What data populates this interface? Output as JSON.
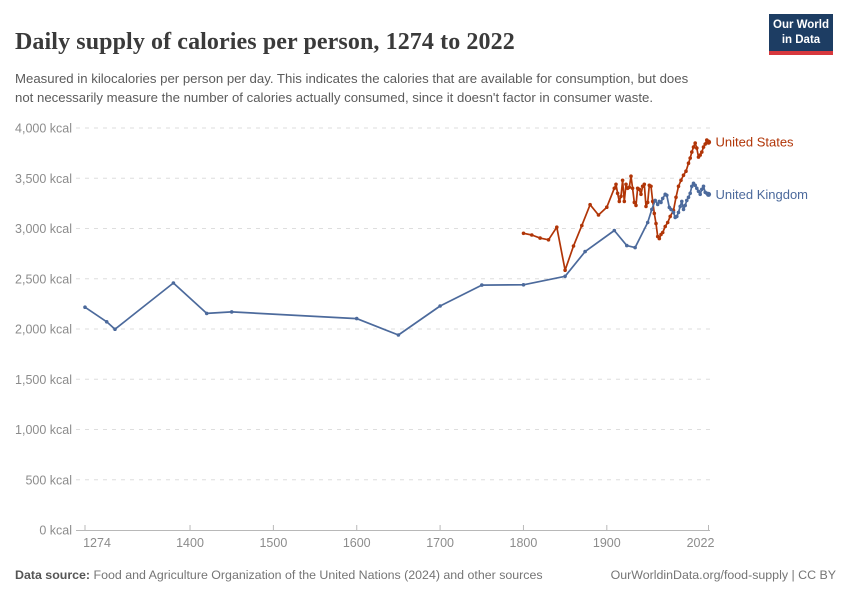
{
  "header": {
    "title": "Daily supply of calories per person, 1274 to 2022",
    "subtitle": "Measured in kilocalories per person per day. This indicates the calories that are available for consumption, but does not necessarily measure the number of calories actually consumed, since it doesn't factor in consumer waste.",
    "logo": {
      "line1": "Our World",
      "line2": "in Data",
      "background": "#1d3d63",
      "accent": "#d7383d"
    }
  },
  "chart_data": {
    "type": "line",
    "title": "Daily supply of calories per person, 1274 to 2022",
    "xlabel": "",
    "ylabel": "",
    "unit": "kcal",
    "grid": "horizontal-dashed",
    "legend_position": "line-end-labels",
    "x_axis": {
      "range": [
        1274,
        2022
      ],
      "ticks": [
        1274,
        1400,
        1500,
        1600,
        1700,
        1800,
        1900,
        2022
      ]
    },
    "y_axis": {
      "range": [
        0,
        4000
      ],
      "ticks": [
        {
          "value": 0,
          "label": "0 kcal"
        },
        {
          "value": 500,
          "label": "500 kcal"
        },
        {
          "value": 1000,
          "label": "1,000 kcal"
        },
        {
          "value": 1500,
          "label": "1,500 kcal"
        },
        {
          "value": 2000,
          "label": "2,000 kcal"
        },
        {
          "value": 2500,
          "label": "2,500 kcal"
        },
        {
          "value": 3000,
          "label": "3,000 kcal"
        },
        {
          "value": 3500,
          "label": "3,500 kcal"
        },
        {
          "value": 4000,
          "label": "4,000 kcal"
        }
      ]
    },
    "series": [
      {
        "name": "United States",
        "color": "#B13507",
        "points": [
          [
            1800,
            2952
          ],
          [
            1810,
            2935
          ],
          [
            1820,
            2904
          ],
          [
            1830,
            2888
          ],
          [
            1840,
            3013
          ],
          [
            1850,
            2585
          ],
          [
            1860,
            2826
          ],
          [
            1870,
            3029
          ],
          [
            1880,
            3237
          ],
          [
            1890,
            3134
          ],
          [
            1900,
            3212
          ],
          [
            1909,
            3400
          ],
          [
            1911,
            3440
          ],
          [
            1913,
            3350
          ],
          [
            1915,
            3270
          ],
          [
            1917,
            3320
          ],
          [
            1919,
            3480
          ],
          [
            1921,
            3270
          ],
          [
            1923,
            3440
          ],
          [
            1925,
            3400
          ],
          [
            1927,
            3410
          ],
          [
            1929,
            3520
          ],
          [
            1931,
            3400
          ],
          [
            1933,
            3260
          ],
          [
            1935,
            3230
          ],
          [
            1937,
            3400
          ],
          [
            1939,
            3390
          ],
          [
            1941,
            3340
          ],
          [
            1943,
            3420
          ],
          [
            1945,
            3440
          ],
          [
            1947,
            3220
          ],
          [
            1949,
            3260
          ],
          [
            1951,
            3430
          ],
          [
            1953,
            3420
          ],
          [
            1955,
            3270
          ],
          [
            1957,
            3150
          ],
          [
            1959,
            3050
          ],
          [
            1961,
            2920
          ],
          [
            1963,
            2900
          ],
          [
            1965,
            2940
          ],
          [
            1967,
            2960
          ],
          [
            1970,
            3020
          ],
          [
            1973,
            3060
          ],
          [
            1976,
            3120
          ],
          [
            1980,
            3180
          ],
          [
            1983,
            3310
          ],
          [
            1986,
            3420
          ],
          [
            1989,
            3480
          ],
          [
            1992,
            3530
          ],
          [
            1995,
            3570
          ],
          [
            1998,
            3650
          ],
          [
            2000,
            3700
          ],
          [
            2002,
            3760
          ],
          [
            2004,
            3810
          ],
          [
            2006,
            3850
          ],
          [
            2008,
            3800
          ],
          [
            2010,
            3710
          ],
          [
            2012,
            3730
          ],
          [
            2014,
            3760
          ],
          [
            2016,
            3810
          ],
          [
            2018,
            3840
          ],
          [
            2020,
            3880
          ],
          [
            2022,
            3860
          ]
        ]
      },
      {
        "name": "United Kingdom",
        "color": "#4C6A9C",
        "points": [
          [
            1274,
            2217
          ],
          [
            1300,
            2072
          ],
          [
            1310,
            1998
          ],
          [
            1380,
            2458
          ],
          [
            1420,
            2155
          ],
          [
            1450,
            2170
          ],
          [
            1600,
            2103
          ],
          [
            1650,
            1940
          ],
          [
            1700,
            2229
          ],
          [
            1750,
            2437
          ],
          [
            1800,
            2440
          ],
          [
            1850,
            2524
          ],
          [
            1874,
            2770
          ],
          [
            1909,
            2980
          ],
          [
            1924,
            2830
          ],
          [
            1934,
            2810
          ],
          [
            1949,
            3060
          ],
          [
            1954,
            3190
          ],
          [
            1958,
            3280
          ],
          [
            1961,
            3240
          ],
          [
            1963,
            3270
          ],
          [
            1965,
            3260
          ],
          [
            1967,
            3300
          ],
          [
            1970,
            3340
          ],
          [
            1972,
            3330
          ],
          [
            1975,
            3210
          ],
          [
            1977,
            3190
          ],
          [
            1980,
            3160
          ],
          [
            1982,
            3110
          ],
          [
            1984,
            3120
          ],
          [
            1986,
            3160
          ],
          [
            1988,
            3220
          ],
          [
            1990,
            3270
          ],
          [
            1992,
            3190
          ],
          [
            1994,
            3230
          ],
          [
            1996,
            3280
          ],
          [
            1998,
            3310
          ],
          [
            2000,
            3350
          ],
          [
            2002,
            3420
          ],
          [
            2004,
            3450
          ],
          [
            2006,
            3430
          ],
          [
            2008,
            3400
          ],
          [
            2010,
            3370
          ],
          [
            2012,
            3340
          ],
          [
            2014,
            3390
          ],
          [
            2016,
            3420
          ],
          [
            2018,
            3360
          ],
          [
            2020,
            3350
          ],
          [
            2022,
            3340
          ]
        ]
      }
    ]
  },
  "footer": {
    "source_label": "Data source:",
    "source_text": " Food and Agriculture Organization of the United Nations (2024) and other sources",
    "link_text": "OurWorldinData.org/food-supply | CC BY"
  }
}
